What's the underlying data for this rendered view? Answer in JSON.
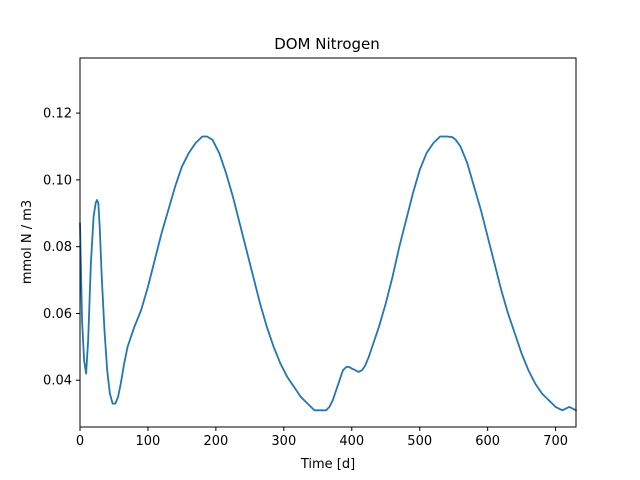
{
  "chart_data": {
    "type": "line",
    "title": "DOM Nitrogen",
    "xlabel": "Time [d]",
    "ylabel": "mmol N / m3",
    "xlim": [
      0,
      730
    ],
    "ylim": [
      0.026,
      0.1365
    ],
    "xticks": [
      0,
      100,
      200,
      300,
      400,
      500,
      600,
      700
    ],
    "xtick_labels": [
      "0",
      "100",
      "200",
      "300",
      "400",
      "500",
      "600",
      "700"
    ],
    "yticks": [
      0.04,
      0.06,
      0.08,
      0.1,
      0.12
    ],
    "ytick_labels": [
      "0.04",
      "0.06",
      "0.08",
      "0.10",
      "0.12"
    ],
    "grid": false,
    "line_color": "#1f77b4",
    "series": [
      {
        "x": [
          0,
          3,
          6,
          9,
          12,
          16,
          20,
          23,
          25,
          27,
          29,
          32,
          36,
          40,
          44,
          48,
          52,
          56,
          60,
          65,
          70,
          80,
          90,
          100,
          110,
          120,
          130,
          140,
          150,
          160,
          170,
          180,
          187,
          195,
          205,
          215,
          225,
          235,
          245,
          255,
          265,
          275,
          285,
          295,
          305,
          315,
          325,
          335,
          345,
          355,
          362,
          367,
          372,
          377,
          382,
          387,
          392,
          396,
          400,
          405,
          410,
          415,
          420,
          425,
          430,
          440,
          450,
          460,
          470,
          480,
          490,
          500,
          510,
          520,
          530,
          540,
          548,
          553,
          560,
          570,
          580,
          590,
          600,
          610,
          620,
          630,
          640,
          650,
          660,
          670,
          680,
          690,
          700,
          710,
          720,
          730
        ],
        "y": [
          0.087,
          0.058,
          0.046,
          0.042,
          0.052,
          0.075,
          0.089,
          0.093,
          0.094,
          0.093,
          0.086,
          0.071,
          0.055,
          0.043,
          0.036,
          0.033,
          0.033,
          0.035,
          0.039,
          0.045,
          0.05,
          0.056,
          0.061,
          0.068,
          0.076,
          0.084,
          0.091,
          0.098,
          0.104,
          0.108,
          0.111,
          0.113,
          0.113,
          0.112,
          0.108,
          0.102,
          0.095,
          0.087,
          0.079,
          0.071,
          0.063,
          0.056,
          0.05,
          0.045,
          0.041,
          0.038,
          0.035,
          0.033,
          0.031,
          0.031,
          0.031,
          0.032,
          0.034,
          0.037,
          0.04,
          0.043,
          0.044,
          0.044,
          0.0435,
          0.043,
          0.0425,
          0.043,
          0.0445,
          0.047,
          0.05,
          0.056,
          0.063,
          0.071,
          0.08,
          0.088,
          0.096,
          0.103,
          0.108,
          0.111,
          0.113,
          0.113,
          0.1128,
          0.112,
          0.11,
          0.105,
          0.098,
          0.091,
          0.083,
          0.075,
          0.067,
          0.06,
          0.054,
          0.048,
          0.043,
          0.039,
          0.036,
          0.034,
          0.032,
          0.031,
          0.032,
          0.031
        ]
      }
    ]
  }
}
